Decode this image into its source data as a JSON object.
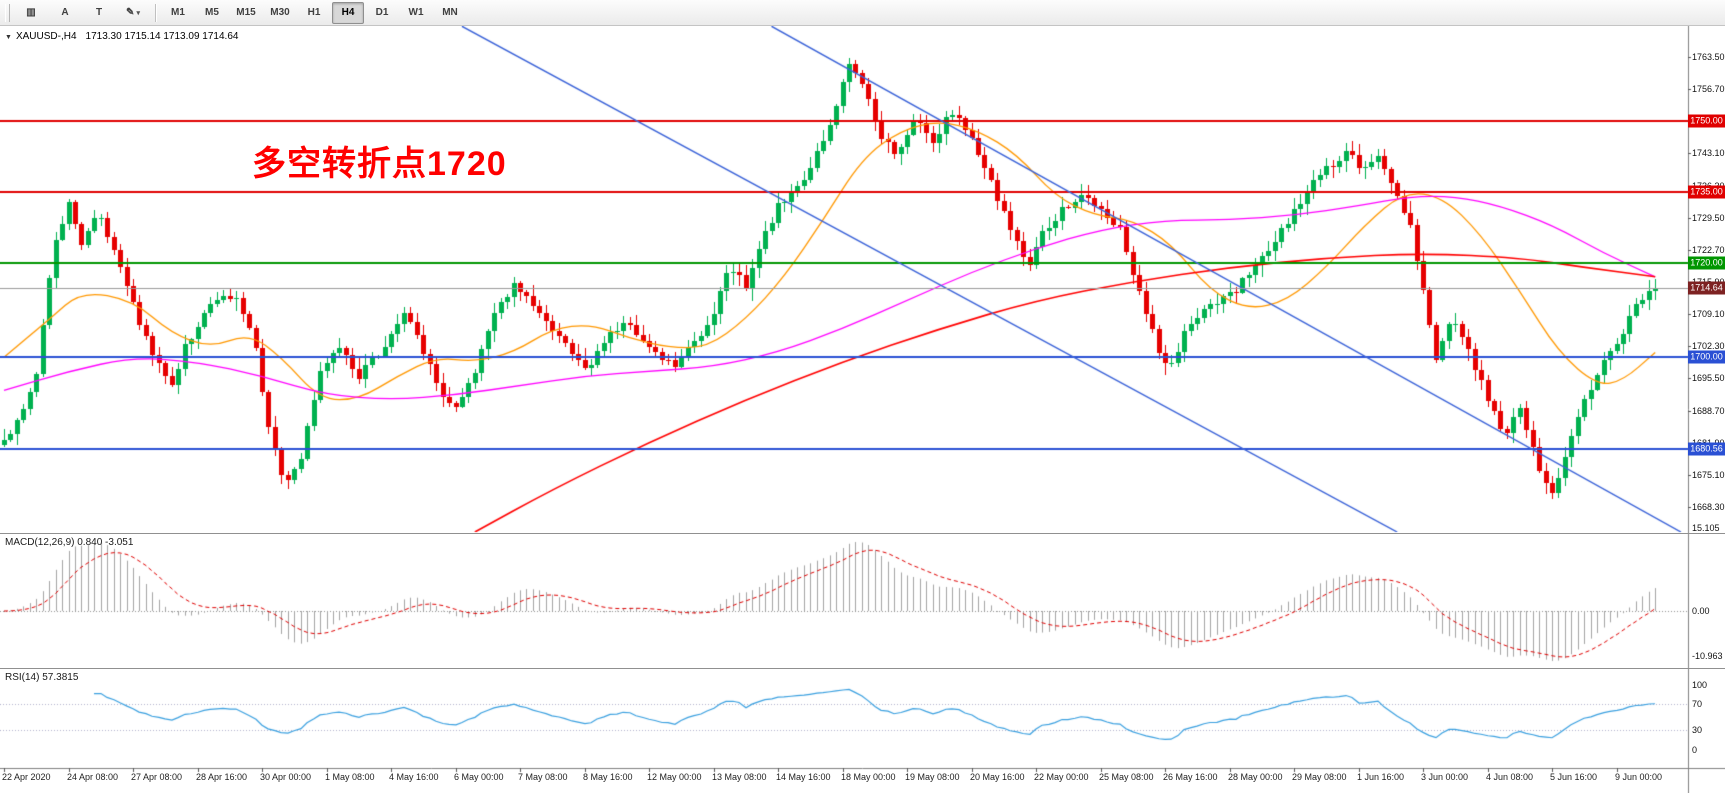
{
  "toolbar": {
    "icons": [
      {
        "name": "chart-type-icon",
        "glyph": "▥"
      },
      {
        "name": "cursor-tool-button",
        "glyph": "A"
      },
      {
        "name": "text-tool-button",
        "glyph": "T"
      },
      {
        "name": "draw-tool-button",
        "glyph": "✎",
        "caret": "▾"
      }
    ],
    "timeframes": [
      "M1",
      "M5",
      "M15",
      "M30",
      "H1",
      "H4",
      "D1",
      "W1",
      "MN"
    ],
    "active_timeframe": "H4"
  },
  "chart_info": {
    "dropdown_icon": "▼",
    "symbol": "XAUUSD-,H4",
    "ohlc": "1713.30 1715.14 1713.09 1714.64"
  },
  "annotation": {
    "text": "多空转折点1720",
    "color": "#ff0000"
  },
  "indicators": {
    "macd": {
      "label": "MACD(12,26,9)",
      "values": "0.840 -3.051",
      "scale": [
        {
          "v": 15.105,
          "t": "15.105"
        },
        {
          "v": 0,
          "t": "0.00"
        },
        {
          "v": -10.963,
          "t": "-10.963"
        }
      ]
    },
    "rsi": {
      "label": "RSI(14)",
      "values": "57.3815",
      "scale": [
        {
          "v": 100,
          "t": "100"
        },
        {
          "v": 70,
          "t": "70"
        },
        {
          "v": 30,
          "t": "30"
        },
        {
          "v": 0,
          "t": "0"
        }
      ],
      "levels": [
        70,
        30
      ]
    }
  },
  "chart_data": {
    "type": "candlestick",
    "symbol": "XAUUSD-",
    "timeframe": "H4",
    "current_price": {
      "value": 1714.64,
      "badge": "1714.64",
      "badge_color": "#7d2222"
    },
    "price_axis": {
      "min_label": 1668.3,
      "step": 6.8,
      "count": 15,
      "labels": [
        "1668.30",
        "1675.10",
        "1681.90",
        "1688.70",
        "1695.50",
        "1702.30",
        "1709.10",
        "1715.90",
        "1722.70",
        "1729.50",
        "1736.30",
        "1743.10",
        "1749.90",
        "1756.70",
        "1763.50"
      ]
    },
    "time_labels": [
      "22 Apr 2020",
      "24 Apr 08:00",
      "27 Apr 08:00",
      "28 Apr 16:00",
      "30 Apr 00:00",
      "1 May 08:00",
      "4 May 16:00",
      "6 May 00:00",
      "7 May 08:00",
      "8 May 16:00",
      "12 May 00:00",
      "13 May 08:00",
      "14 May 16:00",
      "18 May 00:00",
      "19 May 08:00",
      "20 May 16:00",
      "22 May 00:00",
      "25 May 08:00",
      "26 May 16:00",
      "28 May 00:00",
      "29 May 08:00",
      "1 Jun 16:00",
      "3 Jun 00:00",
      "4 Jun 08:00",
      "5 Jun 16:00",
      "9 Jun 00:00"
    ],
    "candles_per_label": 10,
    "waypoints": [
      [
        0,
        1682
      ],
      [
        0.25,
        1688
      ],
      [
        0.5,
        1697
      ],
      [
        0.75,
        1722
      ],
      [
        1.0,
        1733
      ],
      [
        1.2,
        1724
      ],
      [
        1.45,
        1731
      ],
      [
        1.7,
        1722
      ],
      [
        2.0,
        1711
      ],
      [
        2.3,
        1700
      ],
      [
        2.6,
        1694
      ],
      [
        2.8,
        1702
      ],
      [
        3.0,
        1707
      ],
      [
        3.35,
        1714
      ],
      [
        3.65,
        1712
      ],
      [
        3.9,
        1701
      ],
      [
        4.1,
        1686
      ],
      [
        4.35,
        1672
      ],
      [
        4.6,
        1679
      ],
      [
        4.9,
        1697
      ],
      [
        5.2,
        1702
      ],
      [
        5.5,
        1696
      ],
      [
        5.8,
        1701
      ],
      [
        6.0,
        1705
      ],
      [
        6.2,
        1710
      ],
      [
        6.5,
        1701
      ],
      [
        6.75,
        1693
      ],
      [
        7.0,
        1689
      ],
      [
        7.3,
        1697
      ],
      [
        7.6,
        1709
      ],
      [
        7.9,
        1716
      ],
      [
        8.15,
        1712
      ],
      [
        8.5,
        1705
      ],
      [
        8.8,
        1701
      ],
      [
        9.05,
        1698
      ],
      [
        9.35,
        1704
      ],
      [
        9.65,
        1707
      ],
      [
        10.0,
        1702
      ],
      [
        10.35,
        1698
      ],
      [
        10.7,
        1703
      ],
      [
        11.0,
        1710
      ],
      [
        11.25,
        1719
      ],
      [
        11.5,
        1715
      ],
      [
        11.75,
        1725
      ],
      [
        12.0,
        1732
      ],
      [
        12.3,
        1736
      ],
      [
        12.6,
        1743
      ],
      [
        12.9,
        1753
      ],
      [
        13.1,
        1762
      ],
      [
        13.35,
        1756
      ],
      [
        13.6,
        1746
      ],
      [
        13.85,
        1743
      ],
      [
        14.1,
        1750
      ],
      [
        14.4,
        1746
      ],
      [
        14.7,
        1752
      ],
      [
        15.0,
        1746
      ],
      [
        15.3,
        1737
      ],
      [
        15.6,
        1727
      ],
      [
        15.85,
        1719
      ],
      [
        16.1,
        1726
      ],
      [
        16.4,
        1731
      ],
      [
        16.7,
        1734
      ],
      [
        17.0,
        1731
      ],
      [
        17.3,
        1727
      ],
      [
        17.6,
        1714
      ],
      [
        17.85,
        1703
      ],
      [
        18.05,
        1697
      ],
      [
        18.3,
        1705
      ],
      [
        18.6,
        1710
      ],
      [
        19.0,
        1713
      ],
      [
        19.35,
        1718
      ],
      [
        19.65,
        1724
      ],
      [
        20.0,
        1731
      ],
      [
        20.3,
        1737
      ],
      [
        20.6,
        1741
      ],
      [
        20.85,
        1744
      ],
      [
        21.05,
        1739
      ],
      [
        21.3,
        1742
      ],
      [
        21.55,
        1736
      ],
      [
        21.8,
        1727
      ],
      [
        22.0,
        1714
      ],
      [
        22.2,
        1699
      ],
      [
        22.45,
        1709
      ],
      [
        22.7,
        1701
      ],
      [
        23.0,
        1691
      ],
      [
        23.25,
        1683
      ],
      [
        23.5,
        1689
      ],
      [
        23.75,
        1678
      ],
      [
        24.0,
        1671
      ],
      [
        24.3,
        1683
      ],
      [
        24.6,
        1694
      ],
      [
        24.85,
        1701
      ],
      [
        25.05,
        1704
      ],
      [
        25.3,
        1711
      ],
      [
        25.55,
        1714.6
      ]
    ],
    "levels": [
      {
        "price": 1750.0,
        "badge": "1750.00",
        "color": "#e00000",
        "width": 2
      },
      {
        "price": 1735.0,
        "badge": "1735.00",
        "color": "#e00000",
        "width": 2
      },
      {
        "price": 1720.0,
        "badge": "1720.00",
        "color": "#009600",
        "width": 2
      },
      {
        "price": 1700.0,
        "badge": "1700.00",
        "color": "#2a50d4",
        "width": 2
      },
      {
        "price": 1680.56,
        "badge": "1680.56",
        "color": "#2a50d4",
        "width": 2
      }
    ],
    "trendlines": [
      {
        "from": [
          7.1,
          1770.0
        ],
        "to": [
          21.6,
          1663.0
        ],
        "color": "#3a62d8"
      },
      {
        "from": [
          11.9,
          1770.0
        ],
        "to": [
          26.0,
          1663.0
        ],
        "color": "#3a62d8"
      }
    ],
    "moving_averages": [
      {
        "name": "ma-fast-orange",
        "color": "#ff9800",
        "width": 1.3,
        "points": [
          [
            0,
            1700
          ],
          [
            0.7,
            1708
          ],
          [
            1.2,
            1714
          ],
          [
            2,
            1712
          ],
          [
            2.6,
            1705
          ],
          [
            3.2,
            1702
          ],
          [
            3.8,
            1705
          ],
          [
            4.3,
            1700
          ],
          [
            4.9,
            1691
          ],
          [
            5.5,
            1691
          ],
          [
            6.1,
            1696
          ],
          [
            6.7,
            1700
          ],
          [
            7.3,
            1699
          ],
          [
            7.9,
            1701
          ],
          [
            8.5,
            1706
          ],
          [
            9.1,
            1707
          ],
          [
            9.7,
            1704
          ],
          [
            10.3,
            1702
          ],
          [
            10.9,
            1702
          ],
          [
            11.5,
            1708
          ],
          [
            12.1,
            1717
          ],
          [
            12.7,
            1729
          ],
          [
            13.3,
            1742
          ],
          [
            13.9,
            1748
          ],
          [
            14.5,
            1750
          ],
          [
            15.1,
            1748
          ],
          [
            15.7,
            1743
          ],
          [
            16.3,
            1734
          ],
          [
            16.9,
            1730
          ],
          [
            17.5,
            1729
          ],
          [
            18.1,
            1724
          ],
          [
            18.7,
            1714
          ],
          [
            19.3,
            1710
          ],
          [
            19.9,
            1712
          ],
          [
            20.5,
            1719
          ],
          [
            21.1,
            1728
          ],
          [
            21.7,
            1735
          ],
          [
            22.3,
            1734
          ],
          [
            22.9,
            1726
          ],
          [
            23.5,
            1714
          ],
          [
            24.1,
            1701
          ],
          [
            24.7,
            1694
          ],
          [
            25.1,
            1695
          ],
          [
            25.6,
            1701
          ]
        ]
      },
      {
        "name": "ma-medium-magenta",
        "color": "#ff00ff",
        "width": 1.3,
        "points": [
          [
            0,
            1693
          ],
          [
            1,
            1697
          ],
          [
            2,
            1700
          ],
          [
            3,
            1699
          ],
          [
            4,
            1696
          ],
          [
            5,
            1692
          ],
          [
            6,
            1691
          ],
          [
            7,
            1692
          ],
          [
            8,
            1694
          ],
          [
            9,
            1696
          ],
          [
            10,
            1697
          ],
          [
            11,
            1698
          ],
          [
            12,
            1701
          ],
          [
            13,
            1706
          ],
          [
            14,
            1712
          ],
          [
            15,
            1718
          ],
          [
            16,
            1723
          ],
          [
            17,
            1727
          ],
          [
            18,
            1729
          ],
          [
            19,
            1729
          ],
          [
            20,
            1730
          ],
          [
            21,
            1732
          ],
          [
            21.8,
            1734
          ],
          [
            22.5,
            1734
          ],
          [
            23.2,
            1732
          ],
          [
            24,
            1728
          ],
          [
            24.8,
            1722
          ],
          [
            25.6,
            1717
          ]
        ]
      },
      {
        "name": "ma-slow-red",
        "color": "#ff0000",
        "width": 1.6,
        "points": [
          [
            7.3,
            1663
          ],
          [
            8.5,
            1672
          ],
          [
            10,
            1682
          ],
          [
            11.5,
            1691
          ],
          [
            13,
            1699
          ],
          [
            14.5,
            1706
          ],
          [
            16,
            1712
          ],
          [
            17.5,
            1716
          ],
          [
            19,
            1719
          ],
          [
            20.5,
            1721
          ],
          [
            22,
            1722
          ],
          [
            23.5,
            1721
          ],
          [
            24.5,
            1719
          ],
          [
            25.6,
            1717
          ]
        ]
      }
    ],
    "colors": {
      "up": "#00b14f",
      "down": "#e60000",
      "bid_line": "#9a9a9a",
      "macd_hist": "#a3a3a3",
      "macd_signal": "#e00000",
      "macd_zero": "#909090",
      "rsi_line": "#3aa0e0",
      "rsi_level": "#b0b0cc"
    }
  }
}
